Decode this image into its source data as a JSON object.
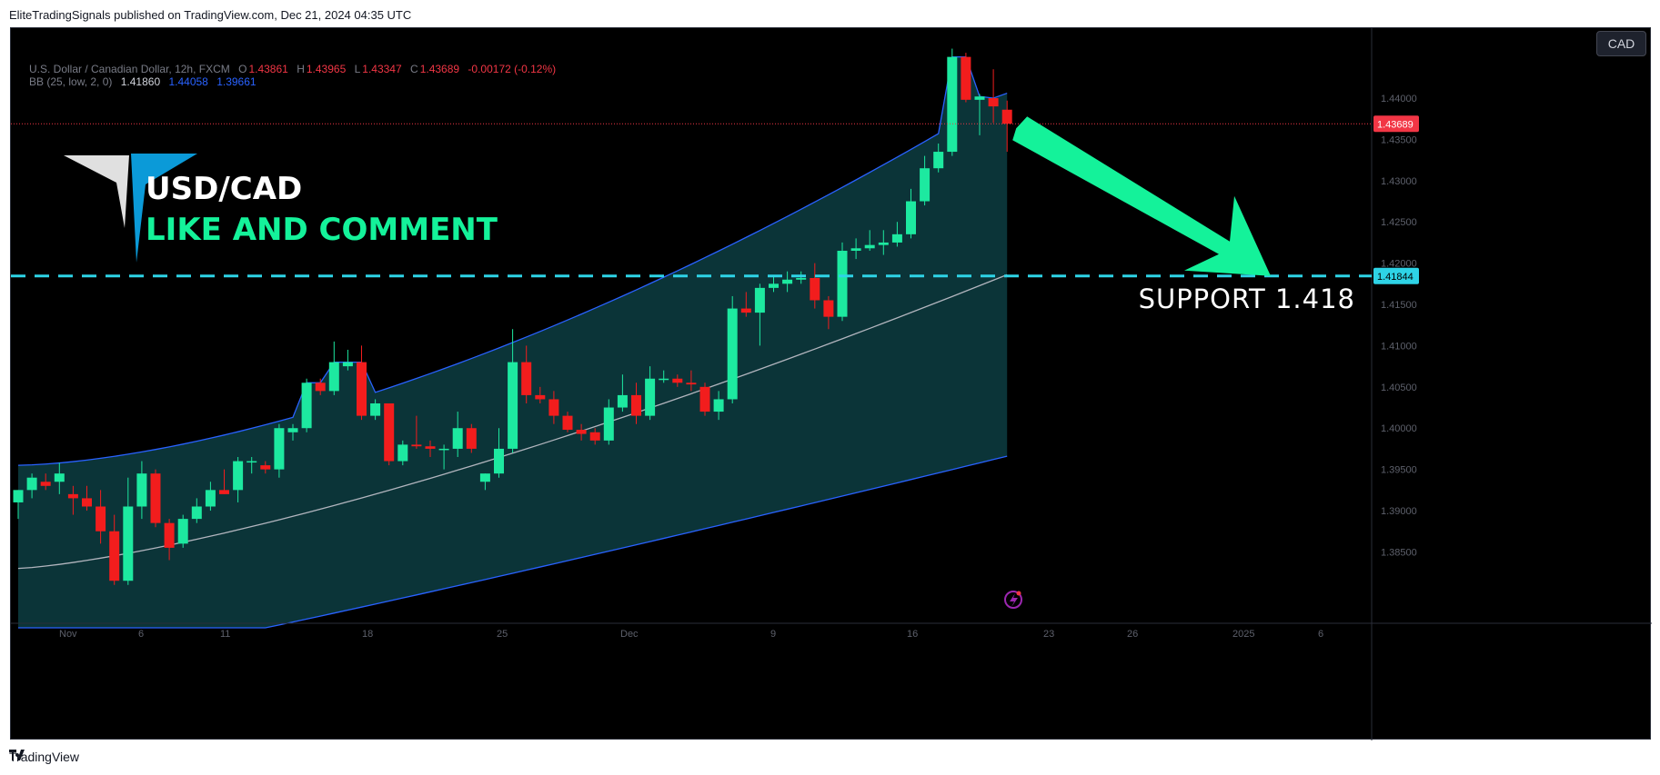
{
  "header": {
    "publisher_line": "EliteTradingSignals published on TradingView.com, Dec 21, 2024 04:35 UTC"
  },
  "legend": {
    "symbol": "U.S. Dollar / Canadian Dollar, 12h, FXCM",
    "open_label": "O",
    "open": "1.43861",
    "high_label": "H",
    "high": "1.43965",
    "low_label": "L",
    "low": "1.43347",
    "close_label": "C",
    "close": "1.43689",
    "change": "-0.00172 (-0.12%)",
    "bb_label": "BB (25, low, 2, 0)",
    "bb_basis": "1.41860",
    "bb_upper": "1.44058",
    "bb_lower": "1.39661"
  },
  "currency_button": "CAD",
  "annotations": {
    "title_line1": "USD/CAD",
    "title_line2": "LIKE AND COMMENT",
    "support_label": "SUPPORT  1.418"
  },
  "footer": {
    "brand": "TradingView"
  },
  "colors": {
    "up": "#1de9a0",
    "down": "#f21d1d",
    "support_line": "#2ed3e6",
    "arrow": "#14f29a",
    "band_fill": "#0c3a3e",
    "band_line": "#2962ff",
    "basis_line": "#b2b5be",
    "price_tag": "#f23645"
  },
  "chart_data": {
    "type": "candlestick",
    "instrument": "USD/CAD",
    "timeframe": "12h",
    "ylim": [
      1.378,
      1.4465
    ],
    "y_ticks": [
      "1.44000",
      "1.43500",
      "1.43000",
      "1.42500",
      "1.42000",
      "1.41500",
      "1.41000",
      "1.40500",
      "1.40000",
      "1.39500",
      "1.39000",
      "1.38500"
    ],
    "x_ticks": [
      "Nov",
      "6",
      "11",
      "18",
      "25",
      "Dec",
      "9",
      "16",
      "23",
      "26",
      "2025",
      "6"
    ],
    "current_price": "1.43689",
    "support_level": "1.41844",
    "candles": [
      {
        "o": 1.391,
        "h": 1.3925,
        "l": 1.389,
        "c": 1.3925
      },
      {
        "o": 1.3925,
        "h": 1.3945,
        "l": 1.3915,
        "c": 1.394
      },
      {
        "o": 1.3935,
        "h": 1.3945,
        "l": 1.3925,
        "c": 1.393
      },
      {
        "o": 1.3935,
        "h": 1.3958,
        "l": 1.392,
        "c": 1.3945
      },
      {
        "o": 1.392,
        "h": 1.393,
        "l": 1.3895,
        "c": 1.3915
      },
      {
        "o": 1.3915,
        "h": 1.393,
        "l": 1.39,
        "c": 1.3905
      },
      {
        "o": 1.3905,
        "h": 1.3925,
        "l": 1.386,
        "c": 1.3875
      },
      {
        "o": 1.3875,
        "h": 1.3895,
        "l": 1.381,
        "c": 1.3815
      },
      {
        "o": 1.3815,
        "h": 1.394,
        "l": 1.381,
        "c": 1.3905
      },
      {
        "o": 1.3905,
        "h": 1.396,
        "l": 1.389,
        "c": 1.3945
      },
      {
        "o": 1.3945,
        "h": 1.395,
        "l": 1.388,
        "c": 1.3885
      },
      {
        "o": 1.3885,
        "h": 1.389,
        "l": 1.384,
        "c": 1.3855
      },
      {
        "o": 1.386,
        "h": 1.3895,
        "l": 1.3855,
        "c": 1.389
      },
      {
        "o": 1.389,
        "h": 1.3915,
        "l": 1.3885,
        "c": 1.3905
      },
      {
        "o": 1.3905,
        "h": 1.3935,
        "l": 1.39,
        "c": 1.3925
      },
      {
        "o": 1.3925,
        "h": 1.395,
        "l": 1.392,
        "c": 1.392
      },
      {
        "o": 1.3925,
        "h": 1.3965,
        "l": 1.391,
        "c": 1.396
      },
      {
        "o": 1.396,
        "h": 1.3965,
        "l": 1.3945,
        "c": 1.396
      },
      {
        "o": 1.3955,
        "h": 1.396,
        "l": 1.3945,
        "c": 1.395
      },
      {
        "o": 1.395,
        "h": 1.4005,
        "l": 1.394,
        "c": 1.4
      },
      {
        "o": 1.3995,
        "h": 1.4005,
        "l": 1.3985,
        "c": 1.4
      },
      {
        "o": 1.4,
        "h": 1.406,
        "l": 1.3995,
        "c": 1.4055
      },
      {
        "o": 1.4055,
        "h": 1.406,
        "l": 1.404,
        "c": 1.4045
      },
      {
        "o": 1.4045,
        "h": 1.4105,
        "l": 1.404,
        "c": 1.408
      },
      {
        "o": 1.4075,
        "h": 1.4095,
        "l": 1.407,
        "c": 1.408
      },
      {
        "o": 1.408,
        "h": 1.41,
        "l": 1.401,
        "c": 1.4015
      },
      {
        "o": 1.4015,
        "h": 1.4035,
        "l": 1.401,
        "c": 1.403
      },
      {
        "o": 1.403,
        "h": 1.403,
        "l": 1.3955,
        "c": 1.396
      },
      {
        "o": 1.396,
        "h": 1.3985,
        "l": 1.3955,
        "c": 1.398
      },
      {
        "o": 1.398,
        "h": 1.4015,
        "l": 1.3975,
        "c": 1.3978
      },
      {
        "o": 1.3978,
        "h": 1.3985,
        "l": 1.3965,
        "c": 1.3975
      },
      {
        "o": 1.3975,
        "h": 1.398,
        "l": 1.395,
        "c": 1.3975
      },
      {
        "o": 1.3975,
        "h": 1.402,
        "l": 1.3965,
        "c": 1.4
      },
      {
        "o": 1.4,
        "h": 1.4005,
        "l": 1.397,
        "c": 1.3975
      },
      {
        "o": 1.3935,
        "h": 1.3945,
        "l": 1.3925,
        "c": 1.3945
      },
      {
        "o": 1.3945,
        "h": 1.4,
        "l": 1.394,
        "c": 1.3975
      },
      {
        "o": 1.3975,
        "h": 1.412,
        "l": 1.397,
        "c": 1.408
      },
      {
        "o": 1.408,
        "h": 1.41,
        "l": 1.403,
        "c": 1.404
      },
      {
        "o": 1.404,
        "h": 1.405,
        "l": 1.403,
        "c": 1.4035
      },
      {
        "o": 1.4035,
        "h": 1.4045,
        "l": 1.4005,
        "c": 1.4015
      },
      {
        "o": 1.4015,
        "h": 1.402,
        "l": 1.3995,
        "c": 1.3998
      },
      {
        "o": 1.3998,
        "h": 1.4005,
        "l": 1.3985,
        "c": 1.3993
      },
      {
        "o": 1.3995,
        "h": 1.4,
        "l": 1.398,
        "c": 1.3985
      },
      {
        "o": 1.3985,
        "h": 1.4035,
        "l": 1.398,
        "c": 1.4025
      },
      {
        "o": 1.4025,
        "h": 1.4065,
        "l": 1.402,
        "c": 1.404
      },
      {
        "o": 1.404,
        "h": 1.4055,
        "l": 1.4005,
        "c": 1.4015
      },
      {
        "o": 1.4015,
        "h": 1.4075,
        "l": 1.401,
        "c": 1.406
      },
      {
        "o": 1.406,
        "h": 1.407,
        "l": 1.4055,
        "c": 1.406
      },
      {
        "o": 1.406,
        "h": 1.4065,
        "l": 1.405,
        "c": 1.4055
      },
      {
        "o": 1.4055,
        "h": 1.407,
        "l": 1.4045,
        "c": 1.4053
      },
      {
        "o": 1.405,
        "h": 1.4055,
        "l": 1.4015,
        "c": 1.402
      },
      {
        "o": 1.402,
        "h": 1.4045,
        "l": 1.401,
        "c": 1.4035
      },
      {
        "o": 1.4035,
        "h": 1.416,
        "l": 1.403,
        "c": 1.4145
      },
      {
        "o": 1.4145,
        "h": 1.4165,
        "l": 1.4135,
        "c": 1.414
      },
      {
        "o": 1.414,
        "h": 1.4175,
        "l": 1.41,
        "c": 1.417
      },
      {
        "o": 1.417,
        "h": 1.4185,
        "l": 1.4165,
        "c": 1.4175
      },
      {
        "o": 1.4175,
        "h": 1.419,
        "l": 1.4165,
        "c": 1.418
      },
      {
        "o": 1.418,
        "h": 1.419,
        "l": 1.4175,
        "c": 1.4182
      },
      {
        "o": 1.4182,
        "h": 1.42,
        "l": 1.4145,
        "c": 1.4155
      },
      {
        "o": 1.4155,
        "h": 1.416,
        "l": 1.412,
        "c": 1.4135
      },
      {
        "o": 1.4135,
        "h": 1.4225,
        "l": 1.413,
        "c": 1.4215
      },
      {
        "o": 1.4215,
        "h": 1.423,
        "l": 1.4205,
        "c": 1.4218
      },
      {
        "o": 1.4218,
        "h": 1.424,
        "l": 1.4215,
        "c": 1.4222
      },
      {
        "o": 1.4222,
        "h": 1.424,
        "l": 1.421,
        "c": 1.4225
      },
      {
        "o": 1.4225,
        "h": 1.425,
        "l": 1.422,
        "c": 1.4235
      },
      {
        "o": 1.4235,
        "h": 1.429,
        "l": 1.423,
        "c": 1.4275
      },
      {
        "o": 1.4275,
        "h": 1.433,
        "l": 1.427,
        "c": 1.4315
      },
      {
        "o": 1.4315,
        "h": 1.4345,
        "l": 1.431,
        "c": 1.4335
      },
      {
        "o": 1.4335,
        "h": 1.446,
        "l": 1.433,
        "c": 1.445
      },
      {
        "o": 1.445,
        "h": 1.4455,
        "l": 1.4395,
        "c": 1.4398
      },
      {
        "o": 1.4398,
        "h": 1.4405,
        "l": 1.4355,
        "c": 1.4402
      },
      {
        "o": 1.44,
        "h": 1.4435,
        "l": 1.437,
        "c": 1.439
      },
      {
        "o": 1.4386,
        "h": 1.4397,
        "l": 1.4335,
        "c": 1.4369
      }
    ],
    "bollinger": {
      "upper_start": 1.3955,
      "upper_end": 1.4406,
      "basis_start": 1.383,
      "basis_end": 1.4186,
      "lower_start": 1.37,
      "lower_end": 1.3966
    }
  }
}
